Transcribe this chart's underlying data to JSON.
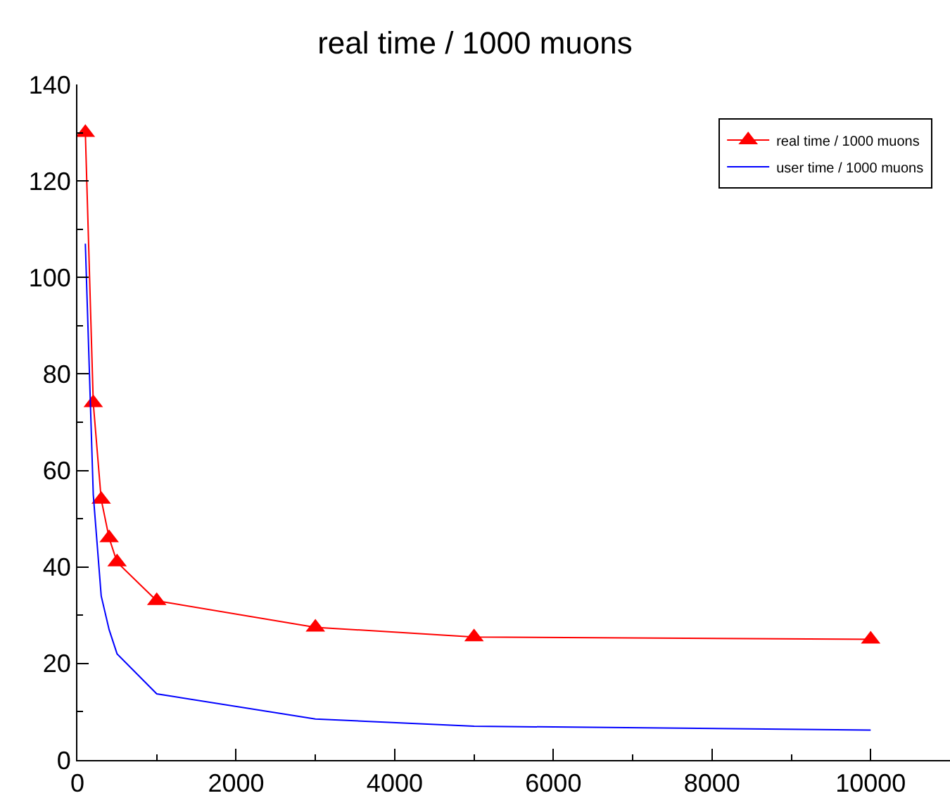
{
  "chart_data": {
    "type": "line",
    "title": "real time / 1000 muons",
    "x": [
      100,
      200,
      300,
      400,
      500,
      1000,
      3000,
      5000,
      10000
    ],
    "series": [
      {
        "name": "real time / 1000 muons",
        "color": "#ff0000",
        "marker": "triangle",
        "values": [
          130,
          74,
          54,
          46,
          41,
          33,
          27.5,
          25.5,
          25
        ]
      },
      {
        "name": "user time / 1000 muons",
        "color": "#0000ff",
        "marker": "none",
        "values": [
          107,
          55,
          34,
          27,
          22,
          13.7,
          8.5,
          7,
          6.2
        ]
      }
    ],
    "xlim": [
      0,
      11000
    ],
    "xticks": [
      0,
      2000,
      4000,
      6000,
      8000,
      10000
    ],
    "ylim": [
      0,
      140
    ],
    "yticks": [
      0,
      20,
      40,
      60,
      80,
      100,
      120,
      140
    ],
    "legend": "top right"
  }
}
